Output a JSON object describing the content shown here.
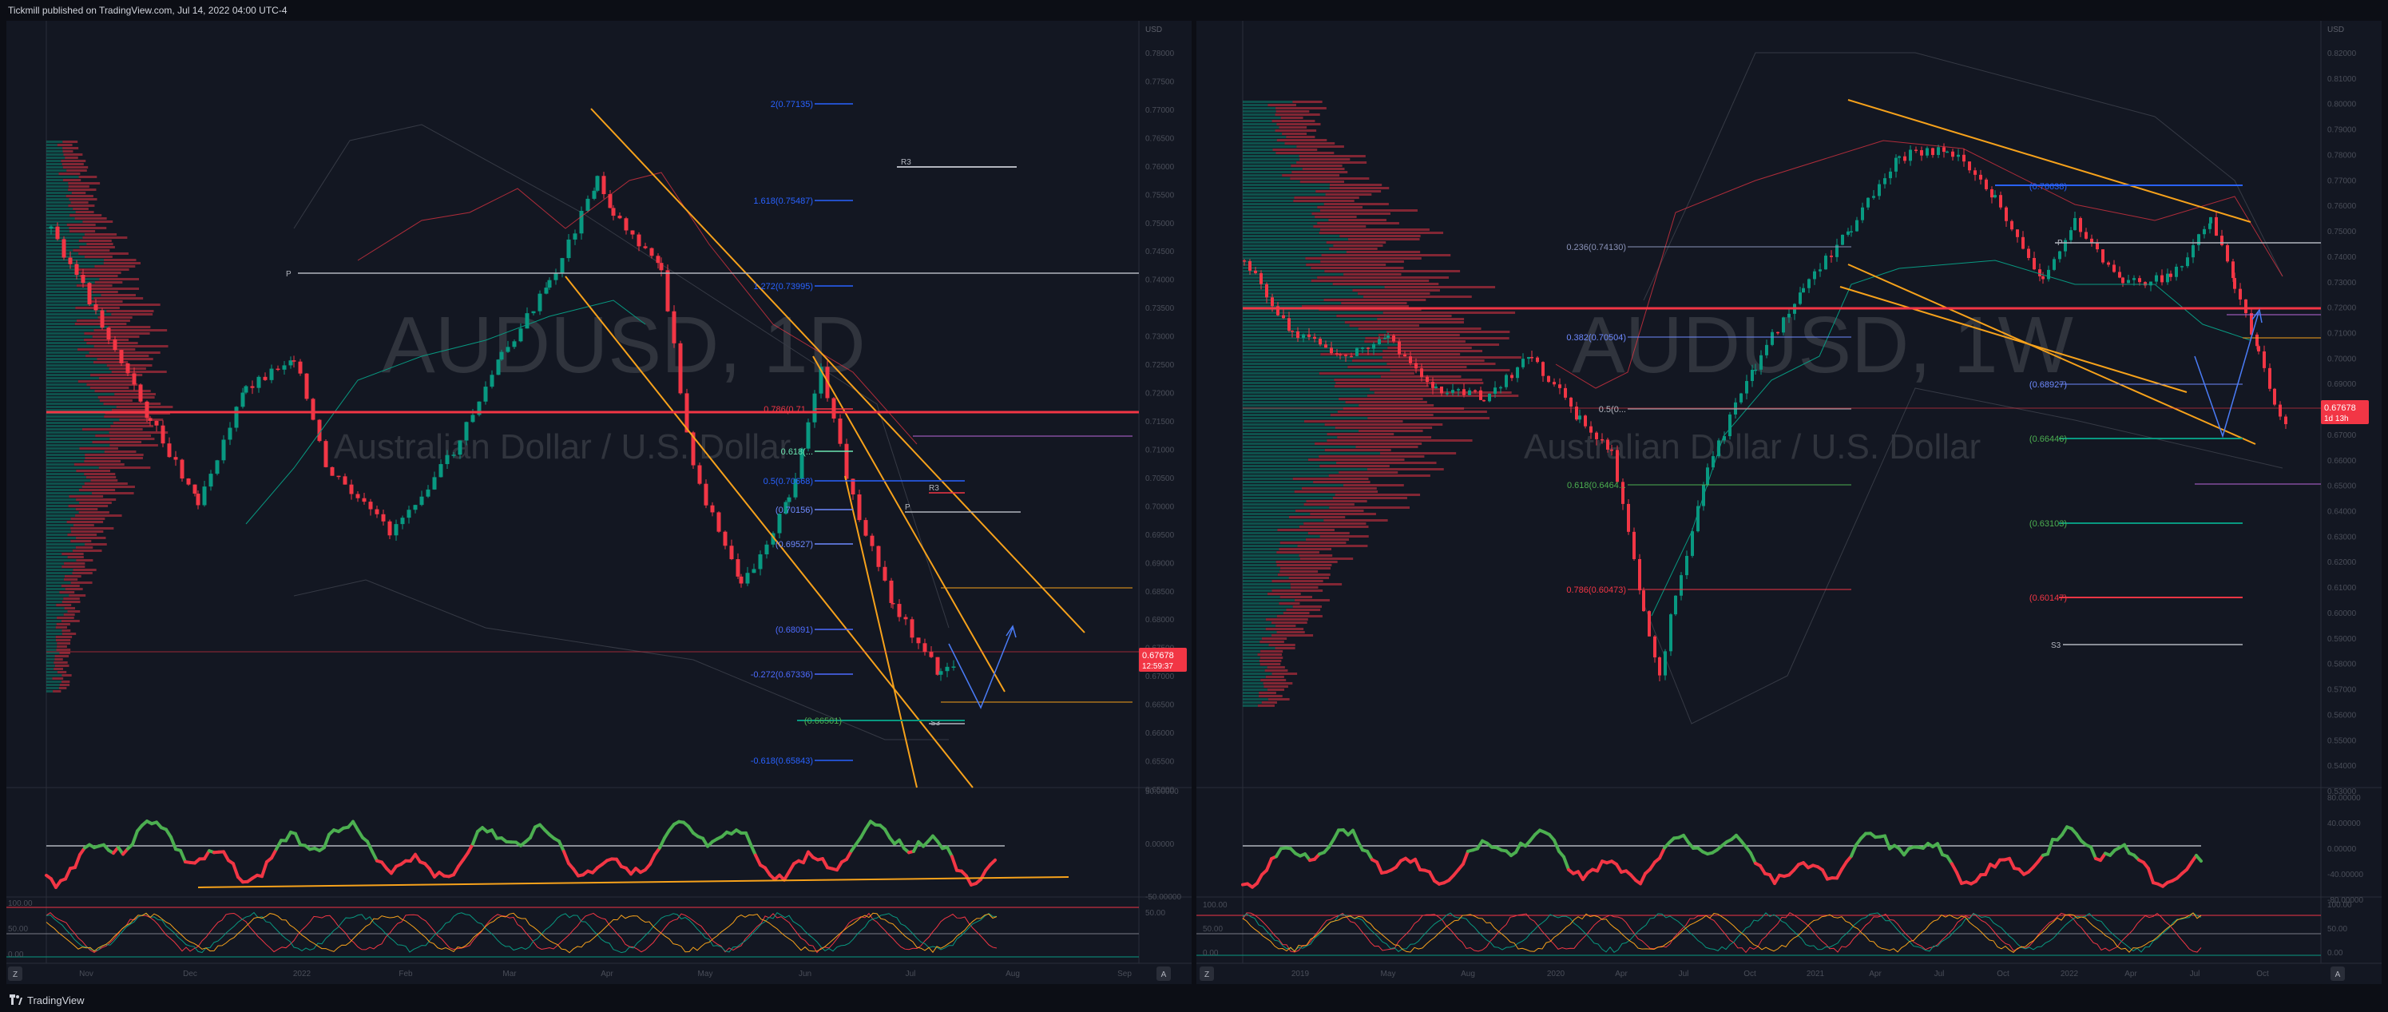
{
  "header": {
    "publish_line": "Tickmill published on TradingView.com, Jul 14, 2022 04:00 UTC-4"
  },
  "footer": {
    "brand": "TradingView"
  },
  "colors": {
    "background": "#131722",
    "up": "#089981",
    "down": "#f23645",
    "orange": "#f7a21b",
    "fib_blue": "#2962ff"
  },
  "charts": [
    {
      "id": "left",
      "watermark": {
        "symbol": "AUDUSD, 1D",
        "name": "Australian Dollar / U.S. Dollar"
      },
      "currency": "USD",
      "price_labels": [
        "0.78000",
        "0.77500",
        "0.77000",
        "0.76500",
        "0.76000",
        "0.75500",
        "0.75000",
        "0.74500",
        "0.74000",
        "0.73500",
        "0.73000",
        "0.72500",
        "0.72000",
        "0.71500",
        "0.71000",
        "0.70500",
        "0.70000",
        "0.69500",
        "0.69000",
        "0.68500",
        "0.68000",
        "0.67500",
        "0.67000",
        "0.66500",
        "0.66000",
        "0.65500",
        "0.65000"
      ],
      "current_price": "0.67678",
      "countdown": "12:59:37",
      "time_labels": [
        "Nov",
        "Dec",
        "2022",
        "Feb",
        "Mar",
        "Apr",
        "May",
        "Jun",
        "Jul",
        "Aug",
        "Sep"
      ],
      "fib_labels": {
        "f2": "2(0.77135)",
        "f1618": "1.618(0.75487)",
        "f1272": "1.272(0.73995)",
        "f786": "0.786(0.71...",
        "f618": "0.618(...",
        "f5": "0.5(0.70668)",
        "f382": "(0.70156)",
        "f236": "(0.69527)",
        "f0": "(0.68091)",
        "fm272": "-0.272(0.67336)",
        "fm618": "-0.618(0.65843)"
      },
      "pivot_labels": {
        "r3": "R3",
        "p_upper": "P",
        "r3_lower": "R3",
        "p_lower": "P",
        "s3": "S3"
      },
      "support_label": "(0.66501)",
      "osc_labels": [
        "50.00000",
        "0.00000",
        "-50.00000"
      ],
      "stoch_labels": [
        "100.00",
        "50.00",
        "0.00"
      ],
      "stoch_labels_right": [
        "50.00"
      ]
    },
    {
      "id": "right",
      "watermark": {
        "symbol": "AUDUSD, 1W",
        "name": "Australian Dollar / U.S. Dollar"
      },
      "currency": "USD",
      "price_labels": [
        "0.82000",
        "0.81000",
        "0.80000",
        "0.79000",
        "0.78000",
        "0.77000",
        "0.76000",
        "0.75000",
        "0.74000",
        "0.73000",
        "0.72000",
        "0.71000",
        "0.70000",
        "0.69000",
        "0.68000",
        "0.67000",
        "0.66000",
        "0.65000",
        "0.64000",
        "0.63000",
        "0.62000",
        "0.61000",
        "0.60000",
        "0.59000",
        "0.58000",
        "0.57000",
        "0.56000",
        "0.55000",
        "0.54000",
        "0.53000"
      ],
      "current_price": "0.67678",
      "countdown": "1d 13h",
      "time_labels": [
        "2019",
        "May",
        "Aug",
        "2020",
        "Apr",
        "Jul",
        "Oct",
        "2021",
        "Apr",
        "Jul",
        "Oct",
        "2022",
        "Apr",
        "Jul",
        "Oct"
      ],
      "fib_labels": {
        "f236": "0.236(0.74130)",
        "f382": "0.382(0.70504)",
        "f5": "0.5(0...",
        "f618": "0.618(0.6464...",
        "f786": "0.786(0.60473)"
      },
      "level_labels": {
        "blue": "(0.76638)",
        "p": "P",
        "light": "(0.68927)",
        "green1": "(0.66446)",
        "green2": "(0.63103)",
        "red": "(0.60147)",
        "s3": "S3"
      },
      "osc_labels": [
        "80.00000",
        "40.00000",
        "0.00000",
        "-40.00000",
        "-80.00000"
      ],
      "stoch_labels": [
        "100.00",
        "50.00",
        "0.00"
      ],
      "stoch_labels_left": [
        "100.00",
        "50.00",
        "0.00"
      ]
    }
  ]
}
